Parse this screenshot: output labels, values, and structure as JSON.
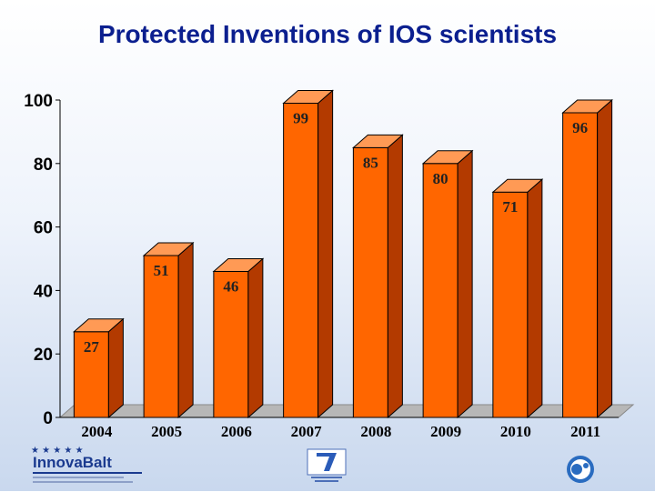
{
  "title": "Protected Inventions  of IOS scientists",
  "chart_data": {
    "type": "bar",
    "title": "Protected Inventions  of IOS scientists",
    "categories": [
      "2004",
      "2005",
      "2006",
      "2007",
      "2008",
      "2009",
      "2010",
      "2011"
    ],
    "values": [
      27,
      51,
      46,
      99,
      85,
      80,
      71,
      96
    ],
    "ylim": [
      0,
      100
    ],
    "yticks": [
      "0",
      "20",
      "40",
      "60",
      "80",
      "100"
    ],
    "xlabel": "",
    "ylabel": "",
    "bar_color": "#ff6600",
    "bar_side_color": "#b33a00",
    "bar_top_color": "#ff9a55",
    "floor_color": "#b7b7b7",
    "grid": false,
    "legend": "none",
    "three_d": true
  },
  "logos": {
    "left": "InnovaBalt",
    "left_icon": "eu-stars-logo",
    "mid_icon": "fp7-logo",
    "right_icon": "ios-logo"
  }
}
